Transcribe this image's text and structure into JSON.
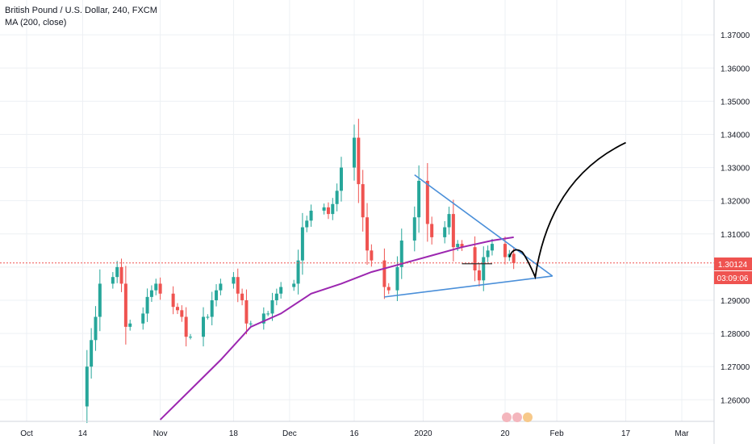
{
  "header": {
    "title": "British Pound / U.S. Dollar, 240, FXCM",
    "indicator": "MA (200, close)"
  },
  "price_badge": {
    "value": "1.30124",
    "countdown": "03:09:06"
  },
  "colors": {
    "background": "#ffffff",
    "grid": "#edf0f4",
    "up_candle": "#26a69a",
    "down_candle": "#ef5350",
    "ma_line": "#9c27b0",
    "trendline": "#4a8fd9",
    "drawing": "#000000",
    "price_line": "#ef5350",
    "axis_text": "#131722"
  },
  "chart_data": {
    "type": "line",
    "title": "British Pound / U.S. Dollar, 240, FXCM",
    "x_tick_labels": [
      "Oct",
      "14",
      "Nov",
      "18",
      "Dec",
      "16",
      "2020",
      "20",
      "Feb",
      "17",
      "Mar"
    ],
    "y_tick_labels": [
      "1.37000",
      "1.36000",
      "1.35000",
      "1.34000",
      "1.33000",
      "1.32000",
      "1.31000",
      "1.30000",
      "1.29000",
      "1.28000",
      "1.27000",
      "1.26000"
    ],
    "ylim": [
      1.2535,
      1.3805
    ],
    "grid": true,
    "legend": "top-left",
    "last_price": 1.30124,
    "series": [
      {
        "name": "GBP/USD close",
        "x": [
          "2019-10-14",
          "2019-10-15",
          "2019-10-16",
          "2019-10-17",
          "2019-10-18",
          "2019-10-21",
          "2019-10-22",
          "2019-10-23",
          "2019-10-24",
          "2019-10-25",
          "2019-10-28",
          "2019-10-29",
          "2019-10-30",
          "2019-10-31",
          "2019-11-01",
          "2019-11-04",
          "2019-11-05",
          "2019-11-06",
          "2019-11-07",
          "2019-11-08",
          "2019-11-11",
          "2019-11-12",
          "2019-11-13",
          "2019-11-14",
          "2019-11-15",
          "2019-11-18",
          "2019-11-19",
          "2019-11-20",
          "2019-11-21",
          "2019-11-22",
          "2019-11-25",
          "2019-11-26",
          "2019-11-27",
          "2019-11-28",
          "2019-11-29",
          "2019-12-02",
          "2019-12-03",
          "2019-12-04",
          "2019-12-05",
          "2019-12-06",
          "2019-12-09",
          "2019-12-10",
          "2019-12-11",
          "2019-12-12",
          "2019-12-13",
          "2019-12-16",
          "2019-12-17",
          "2019-12-18",
          "2019-12-19",
          "2019-12-20",
          "2019-12-23",
          "2019-12-24",
          "2019-12-26",
          "2019-12-27",
          "2019-12-30",
          "2019-12-31",
          "2020-01-02",
          "2020-01-03",
          "2020-01-06",
          "2020-01-07",
          "2020-01-08",
          "2020-01-09",
          "2020-01-10",
          "2020-01-13",
          "2020-01-14",
          "2020-01-15",
          "2020-01-16",
          "2020-01-17",
          "2020-01-20",
          "2020-01-21",
          "2020-01-22"
        ],
        "values": [
          1.258,
          1.27,
          1.278,
          1.285,
          1.295,
          1.297,
          1.3,
          1.295,
          1.282,
          1.283,
          1.286,
          1.291,
          1.293,
          1.295,
          1.292,
          1.288,
          1.287,
          1.285,
          1.279,
          1.279,
          1.285,
          1.285,
          1.29,
          1.293,
          1.295,
          1.297,
          1.292,
          1.29,
          1.283,
          1.283,
          1.286,
          1.286,
          1.29,
          1.292,
          1.294,
          1.295,
          1.302,
          1.312,
          1.314,
          1.317,
          1.318,
          1.316,
          1.319,
          1.323,
          1.33,
          1.339,
          1.325,
          1.315,
          1.305,
          1.302,
          1.294,
          1.293,
          1.3,
          1.308,
          1.315,
          1.326,
          1.313,
          1.309,
          1.312,
          1.316,
          1.306,
          1.307,
          1.306,
          1.299,
          1.296,
          1.303,
          1.305,
          1.307,
          1.303,
          1.304,
          1.3012
        ]
      },
      {
        "name": "MA (200, close)",
        "x": [
          "2019-11-01",
          "2019-11-08",
          "2019-11-15",
          "2019-11-22",
          "2019-11-29",
          "2019-12-06",
          "2019-12-13",
          "2019-12-20",
          "2019-12-27",
          "2020-01-03",
          "2020-01-10",
          "2020-01-17",
          "2020-01-22"
        ],
        "values": [
          1.254,
          1.263,
          1.272,
          1.282,
          1.286,
          1.292,
          1.295,
          1.2985,
          1.301,
          1.3035,
          1.306,
          1.308,
          1.309
        ]
      }
    ]
  }
}
